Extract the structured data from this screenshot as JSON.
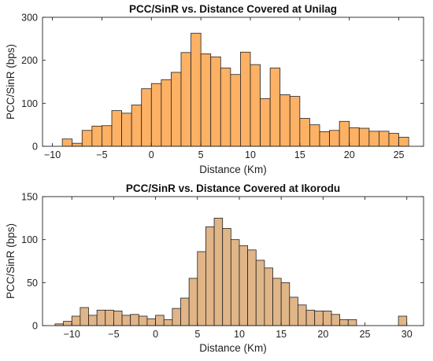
{
  "chart_data": [
    {
      "type": "bar",
      "title": "PCC/SinR vs. Distance Covered at Unilag",
      "xlabel": "Distance (Km)",
      "ylabel": "PCC/SinR (bps)",
      "xlim": [
        -11,
        27.5
      ],
      "ylim": [
        0,
        300
      ],
      "xticks": [
        -10,
        -5,
        0,
        5,
        10,
        15,
        20,
        25
      ],
      "yticks": [
        0,
        100,
        200,
        300
      ],
      "bin_width": 1,
      "bar_color": "#FDB164",
      "edge_color": "#222222",
      "bins_left": [
        -9,
        -8,
        -7,
        -6,
        -5,
        -4,
        -3,
        -2,
        -1,
        0,
        1,
        2,
        3,
        4,
        5,
        6,
        7,
        8,
        9,
        10,
        11,
        12,
        13,
        14,
        15,
        16,
        17,
        18,
        19,
        20,
        21,
        22,
        23,
        24,
        25
      ],
      "values": [
        17,
        7,
        37,
        47,
        48,
        83,
        77,
        96,
        134,
        146,
        155,
        172,
        218,
        263,
        215,
        208,
        182,
        167,
        219,
        190,
        111,
        182,
        120,
        116,
        65,
        50,
        34,
        37,
        58,
        43,
        42,
        35,
        35,
        30,
        21
      ]
    },
    {
      "type": "bar",
      "title": "PCC/SinR vs. Distance Covered at Ikorodu",
      "xlabel": "Distance (Km)",
      "ylabel": "PCC/SinR (bps)",
      "xlim": [
        -13.5,
        32
      ],
      "ylim": [
        0,
        150
      ],
      "xticks": [
        -10,
        -5,
        0,
        5,
        10,
        15,
        20,
        25,
        30
      ],
      "yticks": [
        0,
        50,
        100,
        150
      ],
      "bin_width": 1,
      "bar_color": "#E0B588",
      "edge_color": "#222222",
      "bins_left": [
        -12,
        -11,
        -10,
        -9,
        -8,
        -7,
        -6,
        -5,
        -4,
        -3,
        -2,
        -1,
        0,
        1,
        2,
        3,
        4,
        5,
        6,
        7,
        8,
        9,
        10,
        11,
        12,
        13,
        14,
        15,
        16,
        17,
        18,
        19,
        20,
        21,
        22,
        23,
        24,
        25,
        26,
        27,
        28,
        29
      ],
      "values": [
        2,
        5,
        11,
        21,
        12,
        18,
        18,
        17,
        12,
        13,
        11,
        8,
        12,
        7,
        20,
        32,
        55,
        86,
        115,
        125,
        113,
        100,
        93,
        88,
        76,
        67,
        55,
        50,
        33,
        24,
        18,
        17,
        17,
        13,
        7,
        7,
        0,
        0,
        0,
        0,
        0,
        11
      ]
    }
  ]
}
